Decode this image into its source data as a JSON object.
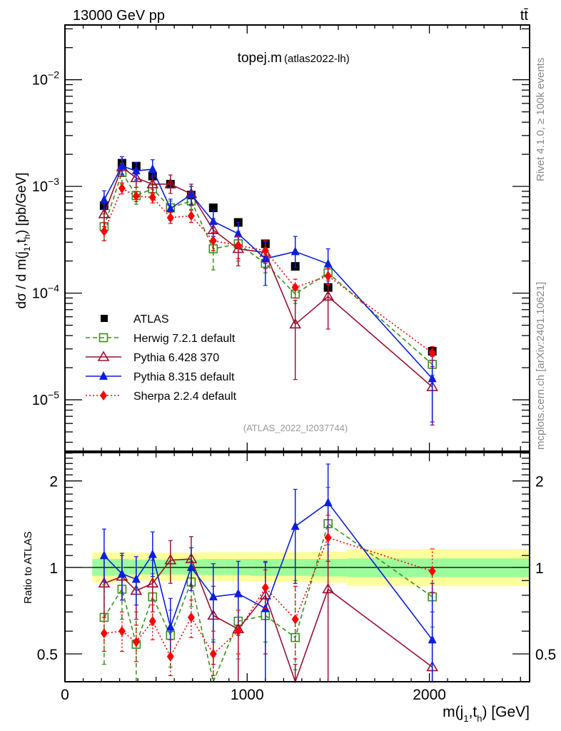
{
  "header": {
    "left_label": "13000 GeV pp",
    "right_label": "tt̄"
  },
  "side_labels": {
    "rivet": "Rivet 4.1.0, ≥ 100k events",
    "mcplots": "mcplots.cern.ch [arXiv:2401.10621]"
  },
  "chart_data": [
    {
      "type": "line",
      "panel": "main",
      "title": "topej.m",
      "subtitle": "(atlas2022-lh)",
      "analysis_tag": "(ATLAS_2022_I2037744)",
      "xlabel": "m(j1,th) [GeV]",
      "ylabel": "dσ / d m(j1,th) [pb/GeV]",
      "yscale": "log",
      "xlim": [
        0,
        2550
      ],
      "ylim": [
        3.3e-06,
        0.0326
      ],
      "ytick_labels": [
        "10^-2",
        "10^-3",
        "10^-4",
        "10^-5"
      ],
      "ytick_values": [
        0.01,
        0.001,
        0.0001,
        1e-05
      ],
      "legend_position": "bottom-left",
      "x": [
        215,
        313,
        391,
        481,
        579,
        693,
        814,
        951,
        1100,
        1264,
        1444,
        2016
      ],
      "series": [
        {
          "name": "ATLAS",
          "style": "data",
          "color": "#000000",
          "marker": "square-filled",
          "values": [
            0.00066,
            0.00165,
            0.00155,
            0.00125,
            0.00105,
            0.00083,
            0.00063,
            0.00046,
            0.00029,
            0.000178,
            0.000113,
            2.85e-05
          ]
        },
        {
          "name": "Herwig 7.2.1 default",
          "style": "dashed",
          "color": "#3a8e20",
          "marker": "square-open",
          "values": [
            0.00042,
            0.00135,
            0.00082,
            0.00095,
            0.00063,
            0.00073,
            0.00026,
            0.00029,
            0.00019,
            9.8e-05,
            0.000155,
            2.15e-05
          ],
          "err_lo": [
            0.00031,
            0.00105,
            0.00068,
            0.0008,
            0.00053,
            0.00061,
            0.000165,
            0.0002,
            0.000155,
            8e-05,
            0.000135,
            1.7e-05
          ],
          "err_hi": [
            0.00055,
            0.00165,
            0.00098,
            0.0011,
            0.00073,
            0.00085,
            0.00034,
            0.00038,
            0.00023,
            0.000118,
            0.000175,
            2.6e-05
          ]
        },
        {
          "name": "Pythia 6.428 370",
          "style": "solid",
          "color": "#9b1030",
          "marker": "triangle-open",
          "values": [
            0.00055,
            0.00152,
            0.0012,
            0.00105,
            0.00105,
            0.00085,
            0.00039,
            0.00026,
            0.00024,
            5.1e-05,
            9.3e-05,
            1.32e-05
          ],
          "err_lo": [
            0.00042,
            0.00125,
            0.00098,
            0.00085,
            0.00086,
            0.00066,
            0.00025,
            0.00018,
            0.00017,
            1.55e-05,
            4.6e-05,
            5.8e-06
          ],
          "err_hi": [
            0.00068,
            0.0018,
            0.00145,
            0.00125,
            0.00128,
            0.00105,
            0.0005,
            0.00034,
            0.00031,
            8.5e-05,
            0.00013,
            2.05e-05
          ]
        },
        {
          "name": "Pythia 8.315 default",
          "style": "solid",
          "color": "#0a1ee0",
          "marker": "triangle-filled",
          "values": [
            0.00075,
            0.00155,
            0.0014,
            0.00145,
            0.00062,
            0.00084,
            0.00047,
            0.00036,
            0.00021,
            0.000245,
            0.000188,
            1.58e-05
          ],
          "err_lo": [
            0.00061,
            0.0013,
            0.00115,
            0.0012,
            0.00048,
            0.00068,
            0.00034,
            0.00026,
            0.000118,
            0.000175,
            0.000123,
            6.2e-06
          ],
          "err_hi": [
            0.00091,
            0.0019,
            0.00168,
            0.00178,
            0.00076,
            0.001,
            0.0006,
            0.00046,
            0.0003,
            0.00034,
            0.00026,
            2.55e-05
          ]
        },
        {
          "name": "Sherpa 2.2.4 default",
          "style": "dotted",
          "color": "#ff0000",
          "marker": "diamond-filled",
          "values": [
            0.00038,
            0.00096,
            0.00081,
            0.00079,
            0.00051,
            0.00053,
            0.00031,
            0.00028,
            0.00025,
            0.000113,
            0.000145,
            2.75e-05
          ],
          "err_lo": [
            0.00031,
            0.00085,
            0.00072,
            0.0007,
            0.00045,
            0.00046,
            0.00025,
            0.00021,
            0.00019,
            9e-05,
            0.00012,
            2.35e-05
          ],
          "err_hi": [
            0.00046,
            0.00108,
            0.0009,
            0.00088,
            0.00057,
            0.0006,
            0.00037,
            0.00034,
            0.00031,
            0.000135,
            0.00017,
            3.15e-05
          ]
        }
      ]
    },
    {
      "type": "line",
      "panel": "ratio",
      "xlabel": "m(j1,th) [GeV]",
      "ylabel": "Ratio to ATLAS",
      "yscale": "log",
      "xlim": [
        0,
        2550
      ],
      "ylim": [
        0.4,
        2.51
      ],
      "ytick_labels": [
        "2",
        "1",
        "0.5"
      ],
      "ytick_values": [
        2,
        1,
        0.5
      ],
      "xtick_labels": [
        "0",
        "1000",
        "2000"
      ],
      "xtick_values": [
        0,
        1000,
        2000
      ],
      "x": [
        215,
        313,
        391,
        481,
        579,
        693,
        814,
        951,
        1100,
        1264,
        1444,
        2016
      ],
      "bin_edges": [
        150,
        275,
        350,
        430,
        530,
        630,
        750,
        880,
        1020,
        1180,
        1350,
        1550,
        2550
      ],
      "band_stat": {
        "lo": [
          0.935,
          0.94,
          0.945,
          0.945,
          0.945,
          0.945,
          0.94,
          0.94,
          0.935,
          0.935,
          0.93,
          0.925
        ],
        "hi": [
          1.07,
          1.07,
          1.065,
          1.065,
          1.065,
          1.065,
          1.07,
          1.07,
          1.07,
          1.07,
          1.07,
          1.075
        ]
      },
      "band_total": {
        "lo": [
          0.885,
          0.895,
          0.9,
          0.9,
          0.9,
          0.9,
          0.895,
          0.895,
          0.89,
          0.89,
          0.885,
          0.86
        ],
        "hi": [
          1.13,
          1.13,
          1.125,
          1.125,
          1.125,
          1.125,
          1.13,
          1.13,
          1.13,
          1.13,
          1.135,
          1.16
        ]
      },
      "series": [
        {
          "name": "Herwig 7.2.1 default",
          "color": "#3a8e20",
          "marker": "square-open",
          "style": "dashed",
          "values": [
            0.67,
            0.84,
            0.54,
            0.79,
            0.58,
            0.89,
            0.35,
            0.65,
            0.68,
            0.57,
            1.42,
            0.79
          ],
          "err_lo": [
            0.46,
            0.66,
            0.38,
            0.63,
            0.45,
            0.73,
            0.25,
            0.48,
            0.55,
            0.44,
            1.2,
            0.62
          ],
          "err_hi": [
            0.87,
            1.0,
            0.7,
            0.95,
            0.71,
            1.05,
            0.56,
            0.8,
            0.85,
            0.9,
            1.9,
            0.98
          ]
        },
        {
          "name": "Pythia 6.428 370",
          "color": "#9b1030",
          "marker": "triangle-open",
          "style": "solid",
          "values": [
            0.88,
            0.93,
            0.83,
            0.88,
            1.06,
            1.07,
            0.68,
            0.61,
            0.8,
            0.28,
            0.84,
            0.45
          ],
          "err_lo": [
            0.67,
            0.77,
            0.66,
            0.7,
            0.88,
            0.86,
            0.46,
            0.4,
            0.5,
            0.1,
            0.4,
            0.2
          ],
          "err_hi": [
            1.09,
            1.1,
            1.0,
            1.06,
            1.24,
            1.28,
            0.86,
            0.82,
            1.05,
            0.46,
            1.28,
            0.7
          ]
        },
        {
          "name": "Pythia 8.315 default",
          "color": "#0a1ee0",
          "marker": "triangle-filled",
          "style": "solid",
          "values": [
            1.1,
            0.95,
            0.91,
            1.11,
            0.62,
            1.0,
            0.79,
            0.81,
            0.72,
            1.39,
            1.68,
            0.56
          ],
          "err_lo": [
            0.89,
            0.77,
            0.74,
            0.93,
            0.48,
            0.83,
            0.55,
            0.58,
            0.38,
            0.88,
            1.05,
            0.3
          ],
          "err_hi": [
            1.36,
            1.12,
            1.09,
            1.33,
            0.78,
            1.17,
            1.03,
            1.05,
            1.04,
            1.87,
            2.29,
            0.88
          ]
        },
        {
          "name": "Sherpa 2.2.4 default",
          "color": "#ff0000",
          "marker": "diamond-filled",
          "style": "dotted",
          "values": [
            0.59,
            0.6,
            0.55,
            0.65,
            0.49,
            0.67,
            0.5,
            0.6,
            0.85,
            0.66,
            1.27,
            0.97
          ],
          "err_lo": [
            0.51,
            0.51,
            0.47,
            0.56,
            0.42,
            0.57,
            0.42,
            0.5,
            0.72,
            0.48,
            1.05,
            0.82
          ],
          "err_hi": [
            0.67,
            0.7,
            0.63,
            0.74,
            0.56,
            0.77,
            0.6,
            0.71,
            0.98,
            0.86,
            1.52,
            1.16
          ]
        }
      ]
    }
  ]
}
